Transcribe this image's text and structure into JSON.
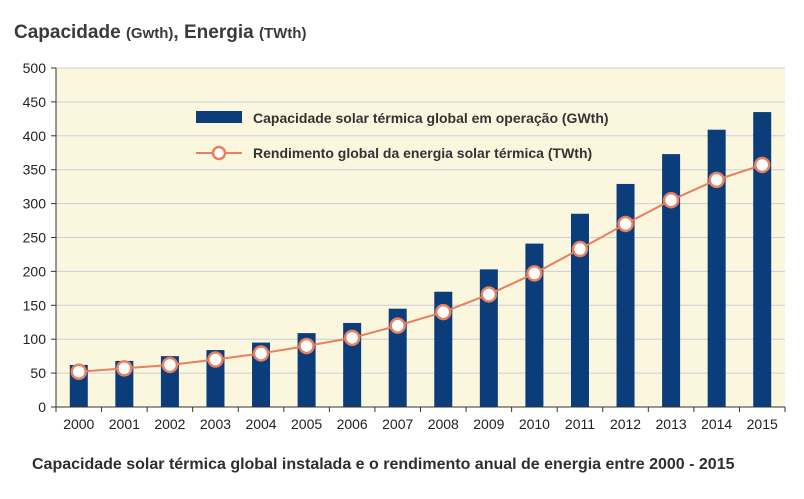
{
  "header": {
    "cap_label": "Capacidade",
    "cap_unit": "(Gwth)",
    "sep": ",",
    "energy_label": "Energia",
    "energy_unit": "(TWth)"
  },
  "caption": "Capacidade solar térmica global instalada e o rendimento anual de energia entre 2000 - 2015",
  "colors": {
    "plot_bg": "#fbf7df",
    "bar": "#0a3d7a",
    "line": "#e8805f",
    "grid": "#c8d0d8"
  },
  "chart_data": {
    "type": "bar",
    "categories": [
      "2000",
      "2001",
      "2002",
      "2003",
      "2004",
      "2005",
      "2006",
      "2007",
      "2008",
      "2009",
      "2010",
      "2011",
      "2012",
      "2013",
      "2014",
      "2015"
    ],
    "ylim": [
      0,
      500
    ],
    "yticks": [
      0,
      50,
      100,
      150,
      200,
      250,
      300,
      350,
      400,
      450,
      500
    ],
    "grid": true,
    "legend_position": "top-center",
    "series": [
      {
        "name": "Capacidade solar térmica global em operação (GWth)",
        "type": "bar",
        "values": [
          62,
          68,
          75,
          84,
          95,
          109,
          124,
          145,
          170,
          203,
          241,
          285,
          329,
          373,
          409,
          435
        ]
      },
      {
        "name": "Rendimento global da energia solar térmica (TWth)",
        "type": "line",
        "values": [
          52,
          57,
          62,
          70,
          79,
          90,
          102,
          120,
          140,
          166,
          197,
          233,
          270,
          305,
          335,
          357
        ]
      }
    ]
  }
}
